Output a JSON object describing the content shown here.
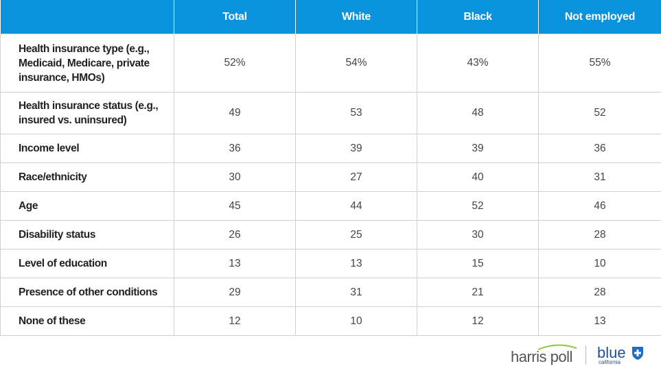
{
  "table": {
    "columns": [
      "Total",
      "White",
      "Black",
      "Not employed"
    ],
    "rows": [
      {
        "label": "Health insurance type (e.g., Medicaid, Medicare, private insurance, HMOs)",
        "values": [
          "52%",
          "54%",
          "43%",
          "55%"
        ]
      },
      {
        "label": "Health insurance status (e.g., insured vs. uninsured)",
        "values": [
          "49",
          "53",
          "48",
          "52"
        ]
      },
      {
        "label": "Income level",
        "values": [
          "36",
          "39",
          "39",
          "36"
        ]
      },
      {
        "label": "Race/ethnicity",
        "values": [
          "30",
          "27",
          "40",
          "31"
        ]
      },
      {
        "label": "Age",
        "values": [
          "45",
          "44",
          "52",
          "46"
        ]
      },
      {
        "label": "Disability status",
        "values": [
          "26",
          "25",
          "30",
          "28"
        ]
      },
      {
        "label": "Level of education",
        "values": [
          "13",
          "13",
          "15",
          "10"
        ]
      },
      {
        "label": "Presence of other conditions",
        "values": [
          "29",
          "31",
          "21",
          "28"
        ]
      },
      {
        "label": "None of these",
        "values": [
          "12",
          "10",
          "12",
          "13"
        ]
      }
    ]
  },
  "logos": [
    "harris poll",
    "blue",
    "california"
  ]
}
